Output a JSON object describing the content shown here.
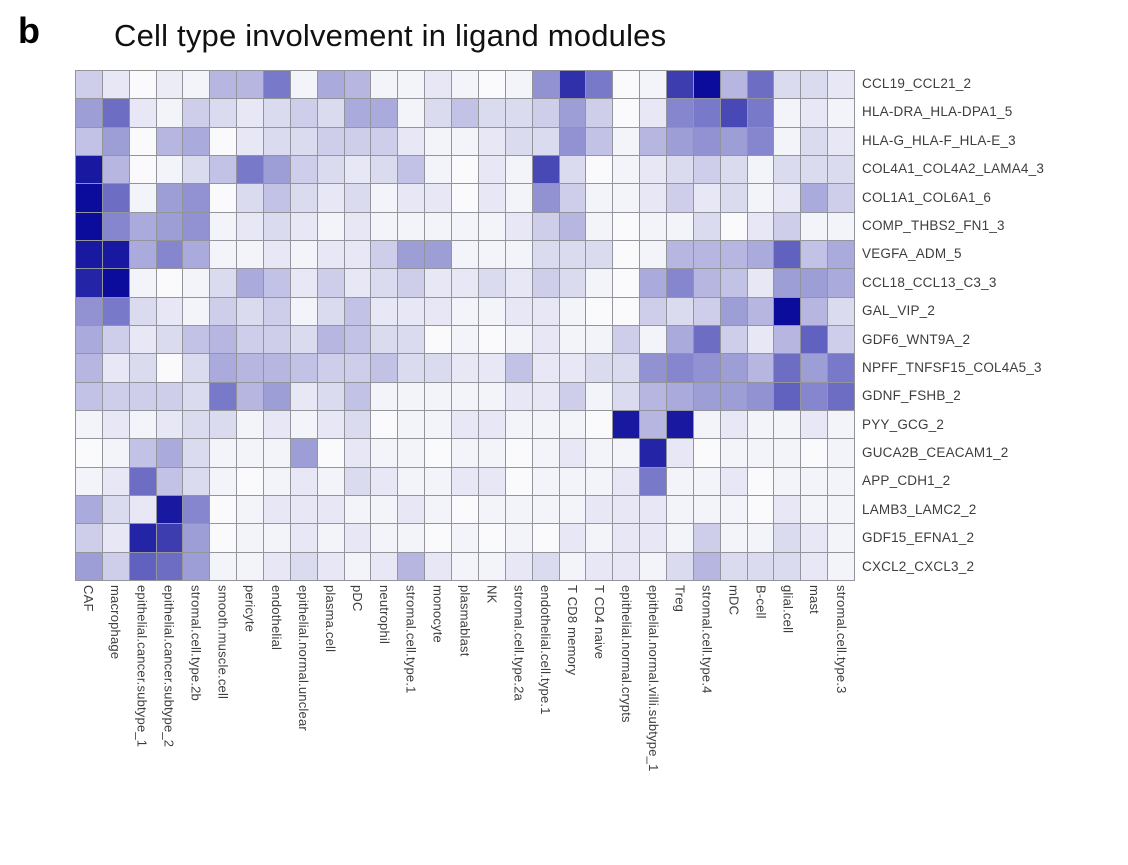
{
  "panel": {
    "letter": "b",
    "title": "Cell type involvement in ligand modules"
  },
  "chart_data": {
    "type": "heatmap",
    "title": "Cell type involvement in ligand modules",
    "legend": "none",
    "grid": true,
    "grid_color": "#94949c",
    "value_scale": {
      "min": 0,
      "max": 1,
      "min_color": "#ffffff",
      "max_color": "#0c0c9c"
    },
    "rows": [
      "CCL19_CCL21_2",
      "HLA-DRA_HLA-DPA1_5",
      "HLA-G_HLA-F_HLA-E_3",
      "COL4A1_COL4A2_LAMA4_3",
      "COL1A1_COL6A1_6",
      "COMP_THBS2_FN1_3",
      "VEGFA_ADM_5",
      "CCL18_CCL13_C3_3",
      "GAL_VIP_2",
      "GDF6_WNT9A_2",
      "NPFF_TNFSF15_COL4A5_3",
      "GDNF_FSHB_2",
      "PYY_GCG_2",
      "GUCA2B_CEACAM1_2",
      "APP_CDH1_2",
      "LAMB3_LAMC2_2",
      "GDF15_EFNA1_2",
      "CXCL2_CXCL3_2"
    ],
    "columns": [
      "CAF",
      "macrophage",
      "epithelial.cancer.subtype_1",
      "epithelial.cancer.subtype_2",
      "stromal.cell.type.2b",
      "smooth.muscle.cell",
      "pericyte",
      "endothelial",
      "epithelial.normal.unclear",
      "plasma.cell",
      "pDC",
      "neutrophil",
      "stromal.cell.type.1",
      "monocyte",
      "plasmablast",
      "NK",
      "stromal.cell.type.2a",
      "endothelial.cell.type.1",
      "T CD8 memory",
      "T CD4 naive",
      "epithelial.normal.crypts",
      "epithelial.normal.villi.subtype_1",
      "Treg",
      "stromal.cell.type.4",
      "mDC",
      "B-cell",
      "glial.cell",
      "mast",
      "stromal.cell.type.3"
    ],
    "values": [
      [
        0.2,
        0.1,
        0.02,
        0.08,
        0.05,
        0.3,
        0.3,
        0.55,
        0.05,
        0.35,
        0.3,
        0.05,
        0.05,
        0.1,
        0.05,
        0.02,
        0.05,
        0.45,
        0.85,
        0.55,
        0.02,
        0.05,
        0.8,
        1.0,
        0.3,
        0.6,
        0.15,
        0.15,
        0.1
      ],
      [
        0.4,
        0.6,
        0.1,
        0.05,
        0.2,
        0.15,
        0.1,
        0.15,
        0.2,
        0.15,
        0.35,
        0.35,
        0.05,
        0.15,
        0.25,
        0.15,
        0.15,
        0.2,
        0.4,
        0.2,
        0.02,
        0.1,
        0.5,
        0.55,
        0.75,
        0.55,
        0.05,
        0.1,
        0.05
      ],
      [
        0.25,
        0.4,
        0.02,
        0.3,
        0.35,
        0.02,
        0.1,
        0.15,
        0.15,
        0.2,
        0.2,
        0.2,
        0.1,
        0.05,
        0.05,
        0.1,
        0.15,
        0.15,
        0.45,
        0.25,
        0.05,
        0.3,
        0.4,
        0.45,
        0.4,
        0.5,
        0.05,
        0.15,
        0.1
      ],
      [
        0.95,
        0.3,
        0.02,
        0.05,
        0.15,
        0.25,
        0.55,
        0.4,
        0.2,
        0.15,
        0.1,
        0.15,
        0.25,
        0.05,
        0.02,
        0.1,
        0.05,
        0.75,
        0.15,
        0.02,
        0.05,
        0.1,
        0.15,
        0.2,
        0.15,
        0.05,
        0.15,
        0.15,
        0.15
      ],
      [
        1.0,
        0.6,
        0.05,
        0.4,
        0.45,
        0.02,
        0.15,
        0.25,
        0.15,
        0.1,
        0.15,
        0.05,
        0.1,
        0.1,
        0.02,
        0.1,
        0.05,
        0.45,
        0.2,
        0.05,
        0.05,
        0.1,
        0.2,
        0.1,
        0.15,
        0.05,
        0.1,
        0.35,
        0.2
      ],
      [
        1.0,
        0.5,
        0.35,
        0.4,
        0.45,
        0.05,
        0.1,
        0.15,
        0.1,
        0.05,
        0.1,
        0.05,
        0.05,
        0.05,
        0.05,
        0.05,
        0.1,
        0.2,
        0.3,
        0.05,
        0.02,
        0.05,
        0.05,
        0.15,
        0.02,
        0.1,
        0.2,
        0.05,
        0.05
      ],
      [
        0.95,
        0.95,
        0.35,
        0.5,
        0.35,
        0.05,
        0.05,
        0.1,
        0.05,
        0.1,
        0.1,
        0.2,
        0.4,
        0.4,
        0.05,
        0.05,
        0.05,
        0.15,
        0.15,
        0.15,
        0.02,
        0.05,
        0.3,
        0.3,
        0.3,
        0.35,
        0.65,
        0.25,
        0.35
      ],
      [
        0.9,
        1.0,
        0.05,
        0.02,
        0.05,
        0.15,
        0.35,
        0.25,
        0.1,
        0.2,
        0.1,
        0.15,
        0.2,
        0.1,
        0.1,
        0.15,
        0.1,
        0.2,
        0.15,
        0.05,
        0.02,
        0.35,
        0.5,
        0.3,
        0.25,
        0.1,
        0.4,
        0.4,
        0.35
      ],
      [
        0.45,
        0.55,
        0.15,
        0.1,
        0.05,
        0.2,
        0.15,
        0.2,
        0.05,
        0.15,
        0.25,
        0.1,
        0.1,
        0.1,
        0.05,
        0.05,
        0.1,
        0.1,
        0.05,
        0.02,
        0.02,
        0.2,
        0.15,
        0.2,
        0.4,
        0.3,
        1.0,
        0.3,
        0.15
      ],
      [
        0.35,
        0.2,
        0.1,
        0.15,
        0.25,
        0.3,
        0.2,
        0.2,
        0.15,
        0.3,
        0.25,
        0.15,
        0.15,
        0.02,
        0.05,
        0.02,
        0.05,
        0.1,
        0.05,
        0.05,
        0.2,
        0.05,
        0.35,
        0.6,
        0.2,
        0.1,
        0.3,
        0.65,
        0.2
      ],
      [
        0.3,
        0.1,
        0.15,
        0.02,
        0.15,
        0.35,
        0.3,
        0.3,
        0.25,
        0.2,
        0.2,
        0.25,
        0.15,
        0.15,
        0.1,
        0.1,
        0.25,
        0.1,
        0.1,
        0.15,
        0.15,
        0.45,
        0.5,
        0.45,
        0.4,
        0.3,
        0.6,
        0.4,
        0.55
      ],
      [
        0.25,
        0.2,
        0.2,
        0.2,
        0.15,
        0.55,
        0.3,
        0.4,
        0.1,
        0.15,
        0.25,
        0.05,
        0.05,
        0.05,
        0.05,
        0.05,
        0.1,
        0.1,
        0.2,
        0.05,
        0.15,
        0.3,
        0.35,
        0.4,
        0.4,
        0.45,
        0.65,
        0.5,
        0.6
      ],
      [
        0.05,
        0.1,
        0.05,
        0.1,
        0.15,
        0.15,
        0.05,
        0.1,
        0.05,
        0.1,
        0.15,
        0.02,
        0.05,
        0.05,
        0.1,
        0.1,
        0.05,
        0.05,
        0.05,
        0.02,
        0.95,
        0.3,
        0.95,
        0.05,
        0.1,
        0.05,
        0.05,
        0.1,
        0.05
      ],
      [
        0.02,
        0.05,
        0.25,
        0.35,
        0.15,
        0.05,
        0.05,
        0.05,
        0.4,
        0.02,
        0.1,
        0.05,
        0.05,
        0.02,
        0.05,
        0.05,
        0.02,
        0.05,
        0.1,
        0.05,
        0.05,
        0.9,
        0.1,
        0.02,
        0.05,
        0.05,
        0.05,
        0.02,
        0.05
      ],
      [
        0.05,
        0.1,
        0.6,
        0.25,
        0.15,
        0.05,
        0.02,
        0.05,
        0.1,
        0.05,
        0.15,
        0.1,
        0.05,
        0.05,
        0.1,
        0.1,
        0.02,
        0.05,
        0.05,
        0.05,
        0.1,
        0.55,
        0.05,
        0.05,
        0.1,
        0.02,
        0.05,
        0.05,
        0.05
      ],
      [
        0.35,
        0.15,
        0.1,
        0.95,
        0.5,
        0.02,
        0.05,
        0.1,
        0.1,
        0.1,
        0.05,
        0.05,
        0.1,
        0.05,
        0.02,
        0.05,
        0.05,
        0.05,
        0.05,
        0.1,
        0.1,
        0.1,
        0.05,
        0.05,
        0.05,
        0.02,
        0.1,
        0.05,
        0.05
      ],
      [
        0.2,
        0.1,
        0.9,
        0.8,
        0.4,
        0.02,
        0.05,
        0.05,
        0.1,
        0.05,
        0.1,
        0.05,
        0.05,
        0.02,
        0.05,
        0.02,
        0.05,
        0.02,
        0.1,
        0.05,
        0.1,
        0.1,
        0.05,
        0.2,
        0.05,
        0.05,
        0.15,
        0.1,
        0.05
      ],
      [
        0.4,
        0.2,
        0.65,
        0.6,
        0.4,
        0.05,
        0.05,
        0.1,
        0.15,
        0.1,
        0.05,
        0.1,
        0.3,
        0.1,
        0.05,
        0.05,
        0.1,
        0.15,
        0.05,
        0.1,
        0.1,
        0.05,
        0.15,
        0.3,
        0.15,
        0.15,
        0.15,
        0.1,
        0.05
      ]
    ]
  }
}
